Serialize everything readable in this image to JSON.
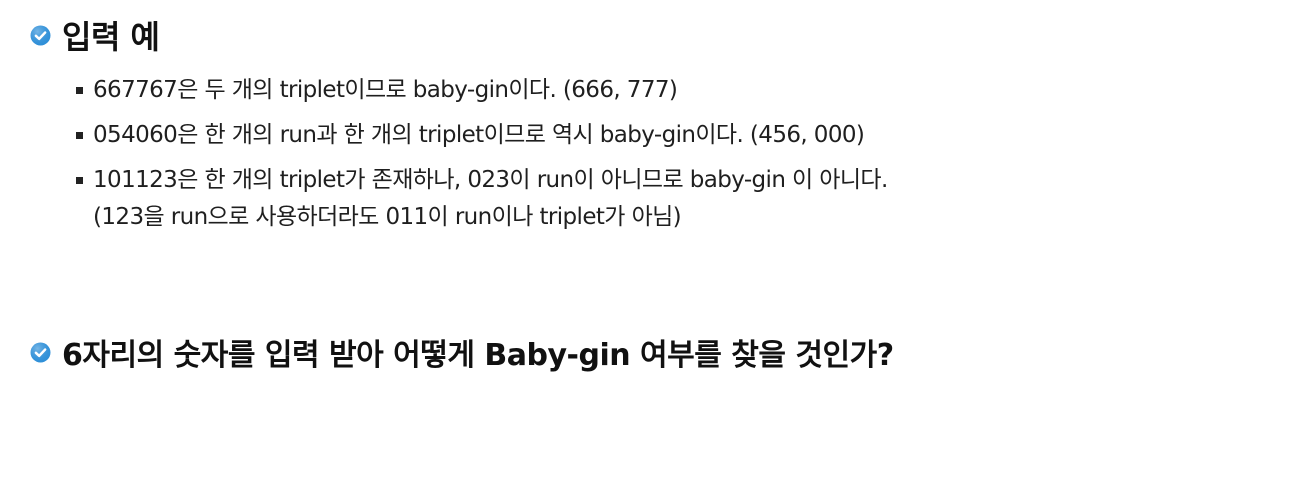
{
  "section1": {
    "title": "입력 예",
    "items": [
      {
        "lines": [
          "667767은 두 개의 triplet이므로 baby-gin이다. (666, 777)"
        ]
      },
      {
        "lines": [
          "054060은 한 개의 run과 한 개의 triplet이므로 역시 baby-gin이다. (456, 000)"
        ]
      },
      {
        "lines": [
          "101123은 한 개의 triplet가 존재하나, 023이 run이 아니므로 baby-gin 이 아니다.",
          "(123을 run으로 사용하더라도 011이 run이나 triplet가 아님)"
        ]
      }
    ]
  },
  "section2": {
    "title": "6자리의 숫자를 입력 받아 어떻게 Baby-gin 여부를 찾을 것인가?"
  },
  "colors": {
    "icon_fill": "#2e8fd8",
    "text": "#1f1f1f"
  }
}
